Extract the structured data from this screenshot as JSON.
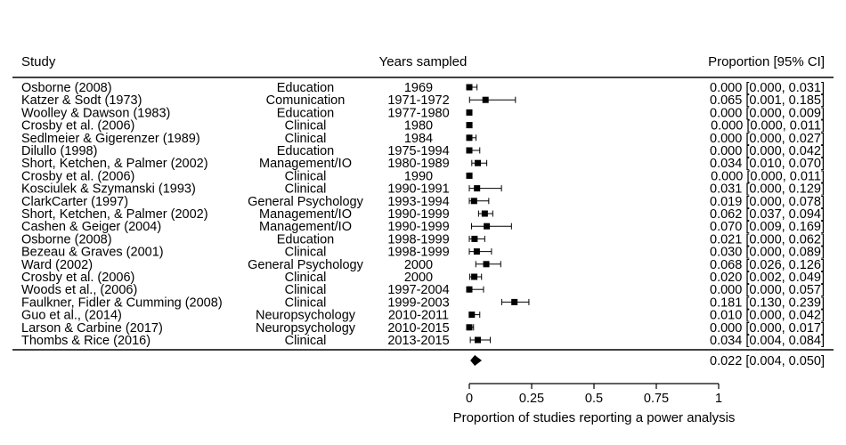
{
  "chart_data": {
    "type": "forest",
    "headers": {
      "study": "Study",
      "years": "Years sampled",
      "estimate": "Proportion [95% CI]"
    },
    "rows": [
      {
        "study": "Osborne (2008)",
        "field": "Education",
        "years": "1969",
        "est": 0.0,
        "lo": 0.0,
        "hi": 0.031,
        "label": "0.000 [0.000, 0.031]"
      },
      {
        "study": "Katzer & Sodt (1973)",
        "field": "Comunication",
        "years": "1971-1972",
        "est": 0.065,
        "lo": 0.001,
        "hi": 0.185,
        "label": "0.065 [0.001, 0.185]"
      },
      {
        "study": "Woolley & Dawson (1983)",
        "field": "Education",
        "years": "1977-1980",
        "est": 0.0,
        "lo": 0.0,
        "hi": 0.009,
        "label": "0.000 [0.000, 0.009]"
      },
      {
        "study": "Crosby et al. (2006)",
        "field": "Clinical",
        "years": "1980",
        "est": 0.0,
        "lo": 0.0,
        "hi": 0.011,
        "label": "0.000 [0.000, 0.011]"
      },
      {
        "study": "Sedlmeier & Gigerenzer (1989)",
        "field": "Clinical",
        "years": "1984",
        "est": 0.0,
        "lo": 0.0,
        "hi": 0.027,
        "label": "0.000 [0.000, 0.027]"
      },
      {
        "study": "Dilullo (1998)",
        "field": "Education",
        "years": "1975-1994",
        "est": 0.0,
        "lo": 0.0,
        "hi": 0.042,
        "label": "0.000 [0.000, 0.042]"
      },
      {
        "study": "Short, Ketchen, & Palmer (2002)",
        "field": "Management/IO",
        "years": "1980-1989",
        "est": 0.034,
        "lo": 0.01,
        "hi": 0.07,
        "label": "0.034 [0.010, 0.070]"
      },
      {
        "study": "Crosby et al. (2006)",
        "field": "Clinical",
        "years": "1990",
        "est": 0.0,
        "lo": 0.0,
        "hi": 0.011,
        "label": "0.000 [0.000, 0.011]"
      },
      {
        "study": "Kosciulek & Szymanski (1993)",
        "field": "Clinical",
        "years": "1990-1991",
        "est": 0.031,
        "lo": 0.0,
        "hi": 0.129,
        "label": "0.031 [0.000, 0.129]"
      },
      {
        "study": "ClarkCarter (1997)",
        "field": "General Psychology",
        "years": "1993-1994",
        "est": 0.019,
        "lo": 0.0,
        "hi": 0.078,
        "label": "0.019 [0.000, 0.078]"
      },
      {
        "study": "Short, Ketchen, & Palmer (2002)",
        "field": "Management/IO",
        "years": "1990-1999",
        "est": 0.062,
        "lo": 0.037,
        "hi": 0.094,
        "label": "0.062 [0.037, 0.094]"
      },
      {
        "study": "Cashen & Geiger (2004)",
        "field": "Management/IO",
        "years": "1990-1999",
        "est": 0.07,
        "lo": 0.009,
        "hi": 0.169,
        "label": "0.070 [0.009, 0.169]"
      },
      {
        "study": "Osborne (2008)",
        "field": "Education",
        "years": "1998-1999",
        "est": 0.021,
        "lo": 0.0,
        "hi": 0.062,
        "label": "0.021 [0.000, 0.062]"
      },
      {
        "study": "Bezeau & Graves (2001)",
        "field": "Clinical",
        "years": "1998-1999",
        "est": 0.03,
        "lo": 0.0,
        "hi": 0.089,
        "label": "0.030 [0.000, 0.089]"
      },
      {
        "study": "Ward (2002)",
        "field": "General Psychology",
        "years": "2000",
        "est": 0.068,
        "lo": 0.026,
        "hi": 0.126,
        "label": "0.068 [0.026, 0.126]"
      },
      {
        "study": "Crosby et al. (2006)",
        "field": "Clinical",
        "years": "2000",
        "est": 0.02,
        "lo": 0.002,
        "hi": 0.049,
        "label": "0.020 [0.002, 0.049]"
      },
      {
        "study": "Woods et al., (2006)",
        "field": "Clinical",
        "years": "1997-2004",
        "est": 0.0,
        "lo": 0.0,
        "hi": 0.057,
        "label": "0.000 [0.000, 0.057]"
      },
      {
        "study": "Faulkner, Fidler & Cumming (2008)",
        "field": "Clinical",
        "years": "1999-2003",
        "est": 0.181,
        "lo": 0.13,
        "hi": 0.239,
        "label": "0.181 [0.130, 0.239]"
      },
      {
        "study": "Guo et al., (2014)",
        "field": "Neuropsychology",
        "years": "2010-2011",
        "est": 0.01,
        "lo": 0.0,
        "hi": 0.042,
        "label": "0.010 [0.000, 0.042]"
      },
      {
        "study": "Larson & Carbine (2017)",
        "field": "Neuropsychology",
        "years": "2010-2015",
        "est": 0.0,
        "lo": 0.0,
        "hi": 0.017,
        "label": "0.000 [0.000, 0.017]"
      },
      {
        "study": "Thombs & Rice (2016)",
        "field": "Clinical",
        "years": "2013-2015",
        "est": 0.034,
        "lo": 0.004,
        "hi": 0.084,
        "label": "0.034 [0.004, 0.084]"
      }
    ],
    "summary": {
      "est": 0.022,
      "lo": 0.004,
      "hi": 0.05,
      "label": "0.022 [0.004, 0.050]"
    },
    "x_axis": {
      "label": "Proportion of studies reporting a power analysis",
      "ticks": [
        0,
        0.25,
        0.5,
        0.75,
        1
      ],
      "tick_labels": [
        "0",
        "0.25",
        "0.5",
        "0.75",
        "1"
      ],
      "range": [
        0,
        1
      ]
    }
  }
}
